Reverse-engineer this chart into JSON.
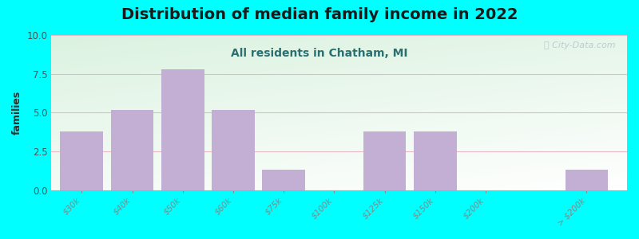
{
  "title": "Distribution of median family income in 2022",
  "subtitle": "All residents in Chatham, MI",
  "ylabel": "families",
  "bar_labels": [
    "$30k",
    "$40k",
    "$50k",
    "$60k",
    "$75k",
    "$100k",
    "$125k",
    "$150k",
    "$200k",
    "> $200k"
  ],
  "bar_heights": [
    3.8,
    5.2,
    7.8,
    5.2,
    1.3,
    0,
    3.8,
    3.8,
    0,
    1.3
  ],
  "bar_positions": [
    0,
    1,
    2,
    3,
    4,
    5,
    6,
    7,
    8,
    10
  ],
  "ylim": [
    0,
    10
  ],
  "yticks": [
    0,
    2.5,
    5,
    7.5,
    10
  ],
  "bar_color": "#c4afd4",
  "bar_edge_color": "#c4afd4",
  "background_color": "#00ffff",
  "grid_color": "#e8b8c8",
  "title_fontsize": 14,
  "subtitle_fontsize": 10,
  "ylabel_fontsize": 9,
  "watermark_text": "ⓘ City-Data.com",
  "watermark_color": "#b8c4cc"
}
